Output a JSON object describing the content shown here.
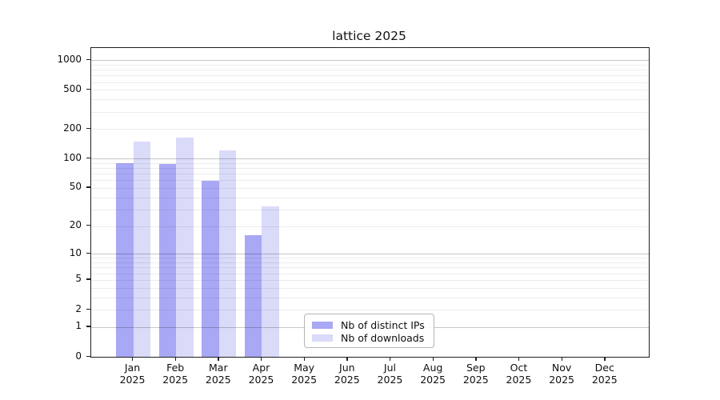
{
  "title": "lattice 2025",
  "chart_data": {
    "type": "bar",
    "year": "2025",
    "categories": [
      "Jan 2025",
      "Feb 2025",
      "Mar 2025",
      "Apr 2025",
      "May 2025",
      "Jun 2025",
      "Jul 2025",
      "Aug 2025",
      "Sep 2025",
      "Oct 2025",
      "Nov 2025",
      "Dec 2025"
    ],
    "months": [
      "Jan",
      "Feb",
      "Mar",
      "Apr",
      "May",
      "Jun",
      "Jul",
      "Aug",
      "Sep",
      "Oct",
      "Nov",
      "Dec"
    ],
    "series": [
      {
        "name": "Nb of distinct IPs",
        "color": "#a8a8f5",
        "values": [
          90,
          89,
          59,
          16,
          0,
          0,
          0,
          0,
          0,
          0,
          0,
          0
        ]
      },
      {
        "name": "Nb of downloads",
        "color": "#dadaf9",
        "values": [
          150,
          165,
          122,
          32,
          0,
          0,
          0,
          0,
          0,
          0,
          0,
          0
        ]
      }
    ],
    "yscale": "log10(1+v)",
    "yticks": [
      0,
      1,
      2,
      5,
      10,
      20,
      50,
      100,
      200,
      500,
      1000
    ],
    "ylim": [
      0,
      1350
    ],
    "xlabel": "",
    "ylabel": "",
    "grid": "horizontal, minor + major",
    "legend_position": "bottom-center-left inside plot"
  },
  "colors": {
    "distinct_ips_bar": "#a8a8f5",
    "downloads_bar": "#dadaf9",
    "axis": "#1f1f1f",
    "grid_major": "#c6c6c6",
    "grid_minor": "#ececec"
  }
}
